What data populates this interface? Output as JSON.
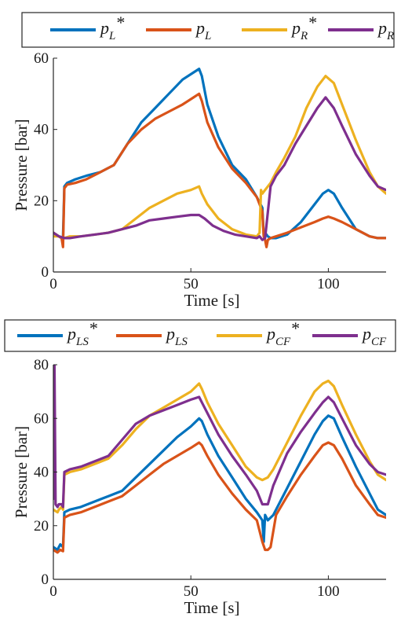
{
  "chart_data": [
    {
      "type": "line",
      "xlabel": "Time [s]",
      "ylabel": "Pressure [bar]",
      "xlim": [
        0,
        121
      ],
      "ylim": [
        0,
        60
      ],
      "xticks": [
        0,
        50,
        100
      ],
      "yticks": [
        0,
        20,
        40,
        60
      ],
      "grid": false,
      "legend_position": "top",
      "series": [
        {
          "name": "p_L*",
          "base": "p",
          "sub": "L",
          "sup": "*",
          "color": "#0072BD",
          "x": [
            0,
            2,
            3,
            3.5,
            4,
            5,
            8,
            12,
            17,
            22,
            27,
            32,
            37,
            42,
            47,
            51,
            53,
            54,
            56,
            60,
            65,
            70,
            74,
            76,
            76.5,
            77,
            78,
            79,
            81,
            85,
            90,
            95,
            98,
            100,
            102,
            105,
            110,
            115,
            118,
            121
          ],
          "y": [
            11,
            10,
            9.5,
            10,
            24,
            25,
            26,
            27,
            28,
            30,
            36,
            42,
            46,
            50,
            54,
            56,
            57,
            55,
            47,
            38,
            30,
            26,
            21,
            18,
            10,
            11,
            10,
            9.5,
            9.5,
            10.5,
            14,
            19,
            22,
            23,
            22,
            18,
            12,
            10,
            9.5,
            9.5
          ]
        },
        {
          "name": "p_L",
          "base": "p",
          "sub": "L",
          "sup": "",
          "color": "#D95319",
          "x": [
            0,
            2,
            3,
            3.5,
            4,
            5,
            8,
            12,
            17,
            22,
            27,
            32,
            37,
            42,
            47,
            51,
            53,
            54,
            56,
            60,
            65,
            70,
            74,
            76,
            76.5,
            77,
            77.5,
            78,
            79,
            81,
            85,
            90,
            95,
            98,
            100,
            102,
            105,
            110,
            115,
            118,
            121
          ],
          "y": [
            11,
            10,
            9.5,
            7,
            23.5,
            24.5,
            25,
            26,
            28,
            30,
            36,
            40,
            43,
            45,
            47,
            49,
            50,
            48,
            42,
            35,
            29,
            25,
            21,
            17,
            10,
            9,
            7,
            9,
            9.5,
            10,
            11,
            12.5,
            14,
            15,
            15.5,
            15,
            14,
            12,
            10,
            9.5,
            9.5
          ]
        },
        {
          "name": "p_R*",
          "base": "p",
          "sub": "R",
          "sup": "*",
          "color": "#EDB120",
          "x": [
            0,
            2,
            4,
            6,
            10,
            15,
            20,
            25,
            30,
            35,
            40,
            45,
            50,
            53,
            54,
            56,
            60,
            65,
            70,
            74,
            75,
            75.5,
            76,
            77,
            79,
            81,
            84,
            88,
            92,
            96,
            99,
            102,
            105,
            110,
            115,
            118,
            121
          ],
          "y": [
            10,
            10,
            9.5,
            10,
            10,
            10.5,
            11,
            12,
            15,
            18,
            20,
            22,
            23,
            24,
            22,
            19,
            15,
            12,
            10.5,
            10,
            11,
            23,
            22,
            23,
            25,
            28,
            32,
            38,
            46,
            52,
            55,
            53,
            47,
            37,
            28,
            24,
            22
          ]
        },
        {
          "name": "p_R",
          "base": "p",
          "sub": "R",
          "sup": "",
          "color": "#7E2F8E",
          "x": [
            0,
            2,
            4,
            6,
            10,
            15,
            20,
            25,
            30,
            35,
            40,
            45,
            50,
            53,
            55,
            58,
            62,
            66,
            70,
            74,
            75,
            76,
            77,
            79,
            81,
            84,
            88,
            92,
            96,
            99,
            102,
            105,
            110,
            115,
            118,
            121
          ],
          "y": [
            11,
            10,
            9.5,
            9.5,
            10,
            10.5,
            11,
            12,
            13,
            14.5,
            15,
            15.5,
            16,
            16,
            15,
            13,
            11.5,
            10.5,
            10,
            9.5,
            10,
            9,
            9.5,
            24,
            27,
            30,
            36,
            41,
            46,
            49,
            46,
            41,
            33,
            27,
            24,
            23
          ]
        }
      ]
    },
    {
      "type": "line",
      "xlabel": "Time [s]",
      "ylabel": "Pressure [bar]",
      "xlim": [
        0,
        121
      ],
      "ylim": [
        0,
        80
      ],
      "xticks": [
        0,
        50,
        100
      ],
      "yticks": [
        0,
        20,
        40,
        60,
        80
      ],
      "grid": false,
      "legend_position": "top",
      "series": [
        {
          "name": "p_LS*",
          "base": "p",
          "sub": "LS",
          "sup": "*",
          "color": "#0072BD",
          "x": [
            0,
            1.5,
            2,
            2.5,
            3.5,
            4,
            6,
            10,
            15,
            20,
            25,
            30,
            35,
            40,
            45,
            50,
            53,
            54,
            56,
            60,
            65,
            70,
            74,
            76,
            76.5,
            77,
            78,
            80,
            85,
            90,
            95,
            98,
            100,
            102,
            105,
            110,
            115,
            118,
            121
          ],
          "y": [
            12,
            11,
            12,
            13,
            12,
            25,
            26,
            27,
            29,
            31,
            33,
            38,
            43,
            48,
            53,
            57,
            60,
            59,
            54,
            46,
            38,
            30,
            25,
            22,
            14,
            24,
            22,
            24,
            34,
            44,
            54,
            59,
            61,
            60,
            53,
            42,
            32,
            26,
            24
          ]
        },
        {
          "name": "p_LS",
          "base": "p",
          "sub": "LS",
          "sup": "",
          "color": "#D95319",
          "x": [
            0,
            1.5,
            2,
            2.5,
            3.5,
            4,
            6,
            10,
            15,
            20,
            25,
            30,
            35,
            40,
            45,
            50,
            53,
            54,
            56,
            60,
            65,
            70,
            74,
            76,
            77,
            78,
            79,
            81,
            85,
            90,
            95,
            98,
            100,
            102,
            105,
            110,
            115,
            118,
            121
          ],
          "y": [
            11,
            10,
            10.5,
            11,
            10.5,
            23,
            24,
            25,
            27,
            29,
            31,
            35,
            39,
            43,
            46,
            49,
            51,
            50,
            46,
            39,
            32,
            26,
            22,
            14,
            11,
            11,
            12,
            24,
            31,
            39,
            46,
            50,
            51,
            50,
            45,
            35,
            28,
            24,
            23
          ]
        },
        {
          "name": "p_CF*",
          "base": "p",
          "sub": "CF",
          "sup": "*",
          "color": "#EDB120",
          "x": [
            0,
            1.5,
            2,
            3,
            3.5,
            4,
            6,
            10,
            15,
            20,
            25,
            30,
            35,
            40,
            45,
            50,
            53,
            54,
            56,
            60,
            65,
            70,
            74,
            76,
            78,
            80,
            85,
            90,
            95,
            98,
            100,
            102,
            105,
            110,
            115,
            118,
            121
          ],
          "y": [
            26,
            25,
            26,
            27,
            26,
            39,
            40,
            41,
            43,
            45,
            50,
            56,
            61,
            64,
            67,
            70,
            73,
            71,
            66,
            58,
            50,
            42,
            38,
            37,
            38,
            41,
            51,
            61,
            70,
            73,
            74,
            72,
            65,
            54,
            44,
            39,
            37
          ]
        },
        {
          "name": "p_CF",
          "base": "p",
          "sub": "CF",
          "sup": "",
          "color": "#7E2F8E",
          "x": [
            0,
            0.4,
            0.8,
            1.5,
            2,
            3,
            3.5,
            4,
            6,
            10,
            15,
            20,
            25,
            30,
            35,
            40,
            45,
            50,
            53,
            54,
            56,
            60,
            65,
            70,
            74,
            76,
            78,
            80,
            85,
            90,
            95,
            98,
            100,
            102,
            105,
            110,
            115,
            118,
            121
          ],
          "y": [
            30,
            80,
            28,
            27,
            28,
            28,
            27,
            40,
            41,
            42,
            44,
            46,
            52,
            58,
            61,
            63,
            65,
            67,
            68,
            66,
            62,
            54,
            46,
            39,
            33,
            28,
            28,
            35,
            47,
            55,
            62,
            66,
            68,
            66,
            60,
            50,
            43,
            40,
            39
          ]
        }
      ]
    }
  ]
}
